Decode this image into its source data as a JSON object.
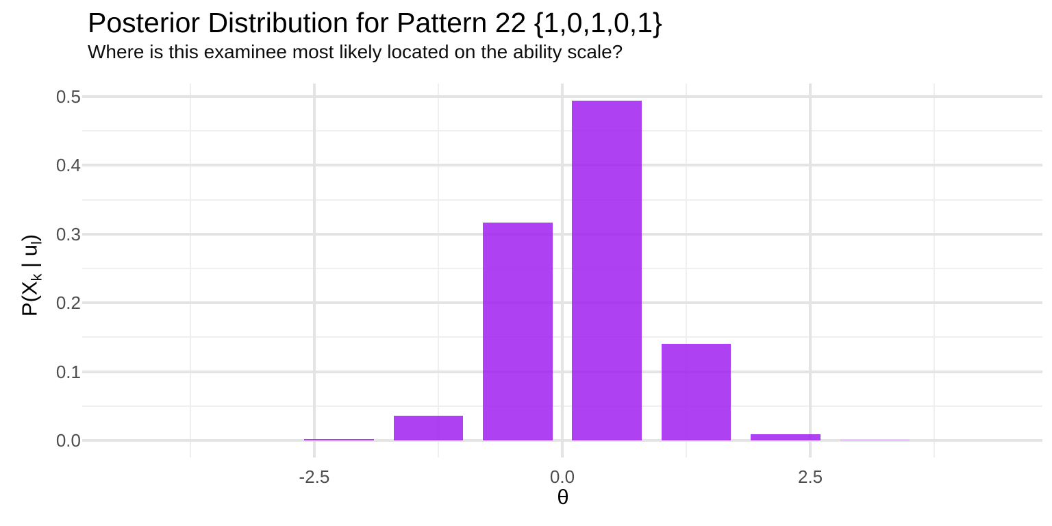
{
  "title": "Posterior Distribution for Pattern 22 {1,0,1,0,1}",
  "subtitle": "Where is this examinee most likely located on the ability scale?",
  "axes": {
    "x_title": "θ",
    "y_title_text": "P(Xk | ul)",
    "y_title_parts": {
      "p1": "P(X",
      "sub1": "k",
      "p2": " | u",
      "sub2": "l",
      "p3": ")"
    },
    "x_tick_labels": [
      "-2.5",
      "0.0",
      "2.5"
    ],
    "y_tick_labels": [
      "0.0",
      "0.1",
      "0.2",
      "0.3",
      "0.4",
      "0.5"
    ]
  },
  "chart_data": {
    "type": "bar",
    "title": "Posterior Distribution for Pattern 22 {1,0,1,0,1}",
    "subtitle": "Where is this examinee most likely located on the ability scale?",
    "xlabel": "θ",
    "ylabel": "P(Xk | ul)",
    "x": [
      -4.05,
      -3.15,
      -2.25,
      -1.35,
      -0.45,
      0.45,
      1.35,
      2.25,
      3.15,
      4.05
    ],
    "values": [
      0.0,
      0.0002,
      0.002,
      0.036,
      0.317,
      0.494,
      0.14,
      0.009,
      0.0005,
      0.0
    ],
    "bar_width": 0.7,
    "x_major_ticks": [
      -2.5,
      0.0,
      2.5
    ],
    "x_minor_ticks": [
      -3.75,
      -1.25,
      1.25,
      3.75
    ],
    "y_major_ticks": [
      0.0,
      0.1,
      0.2,
      0.3,
      0.4,
      0.5
    ],
    "y_minor_ticks": [
      0.05,
      0.15,
      0.25,
      0.35,
      0.45
    ],
    "xlim": [
      -4.84,
      4.84
    ],
    "ylim": [
      -0.025,
      0.519
    ],
    "grid": "on",
    "legend": "none",
    "bar_color": "#A020F0",
    "bar_alpha": 0.85
  },
  "colors": {
    "background": "#ffffff",
    "bar_rendered": "#AC52EE",
    "grid_major": "#e4e4e4",
    "grid_minor": "#efefef",
    "axis_text": "#4d4d4d",
    "title_text": "#000000"
  }
}
